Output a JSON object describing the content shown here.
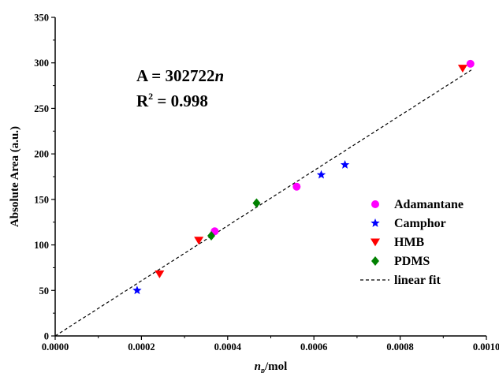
{
  "chart_data": {
    "type": "scatter",
    "title": "",
    "xlabel": {
      "italic": "n",
      "sub": "p",
      "rest": "/mol"
    },
    "ylabel": "Absolute Area (a.u.)",
    "xlim": [
      0,
      0.001
    ],
    "ylim": [
      0,
      350
    ],
    "x_ticks": [
      "0.0000",
      "0.0002",
      "0.0004",
      "0.0006",
      "0.0008",
      "0.0010"
    ],
    "y_ticks": [
      "0",
      "50",
      "100",
      "150",
      "200",
      "250",
      "300",
      "350"
    ],
    "grid": false,
    "legend_position": "bottom-right",
    "annotations": [
      {
        "text": "A = 302722",
        "italic_suffix": "n"
      },
      {
        "text": "R",
        "sup": "2",
        "suffix": " = 0.998"
      }
    ],
    "series": [
      {
        "name": "Adamantane",
        "marker": "circle",
        "color": "#ff00ff",
        "x": [
          0.00037,
          0.00056,
          0.000963
        ],
        "y": [
          115,
          164,
          299
        ]
      },
      {
        "name": "Camphor",
        "marker": "star",
        "color": "#0000ff",
        "x": [
          0.00019,
          0.000617,
          0.000672
        ],
        "y": [
          50,
          177,
          188
        ]
      },
      {
        "name": "HMB",
        "marker": "triangle-down",
        "color": "#ff0000",
        "x": [
          0.000242,
          0.000333,
          0.000945
        ],
        "y": [
          68,
          105,
          294
        ]
      },
      {
        "name": "PDMS",
        "marker": "diamond",
        "color": "#008000",
        "x": [
          0.000362,
          0.000467
        ],
        "y": [
          110,
          146
        ]
      }
    ],
    "fit": {
      "name": "linear fit",
      "slope": 302722,
      "style": "dashed",
      "color": "#000000"
    }
  }
}
